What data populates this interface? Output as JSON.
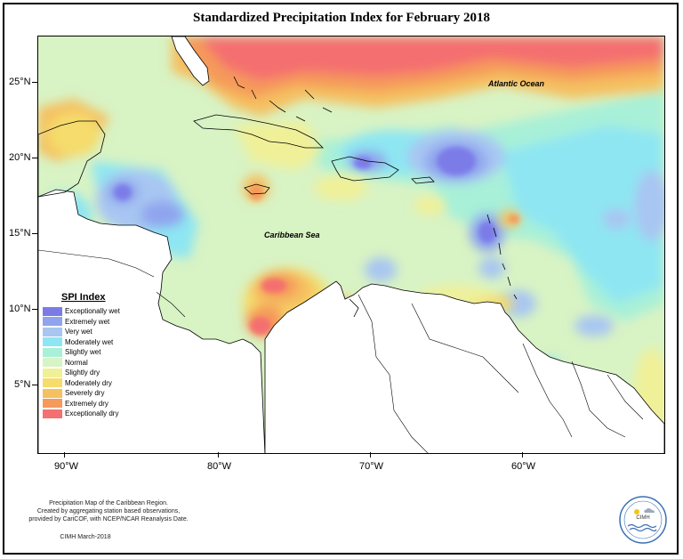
{
  "title": "Standardized Precipitation Index for February 2018",
  "map_labels": {
    "atlantic": "Atlantic Ocean",
    "caribbean": "Caribbean Sea"
  },
  "axes": {
    "y_ticks": [
      "25°N",
      "20°N",
      "15°N",
      "10°N",
      "5°N"
    ],
    "x_ticks": [
      "90°W",
      "80°W",
      "70°W",
      "60°W"
    ]
  },
  "legend": {
    "title": "SPI Index",
    "items": [
      {
        "label": "Exceptionally wet",
        "color": "#7b7be8"
      },
      {
        "label": "Extremely wet",
        "color": "#8fa4ee"
      },
      {
        "label": "Very wet",
        "color": "#a8c6f2"
      },
      {
        "label": "Moderately wet",
        "color": "#8ee6f2"
      },
      {
        "label": "Slightly wet",
        "color": "#a8f0d8"
      },
      {
        "label": "Normal",
        "color": "#d8f3c4"
      },
      {
        "label": "Slightly dry",
        "color": "#f0f098"
      },
      {
        "label": "Moderately dry",
        "color": "#f5dc6c"
      },
      {
        "label": "Severely dry",
        "color": "#f5c060"
      },
      {
        "label": "Extremely dry",
        "color": "#f59a5a"
      },
      {
        "label": "Exceptionally dry",
        "color": "#f47070"
      }
    ]
  },
  "footer": {
    "line1": "Precipitation Map of the Caribbean Region.",
    "line2": "Created by aggregating station based observations,",
    "line3": "provided by CariCOF, with NCEP/NCAR Reanalysis Date.",
    "credit": "CIMH March-2018",
    "logo_text": "CIMH"
  }
}
